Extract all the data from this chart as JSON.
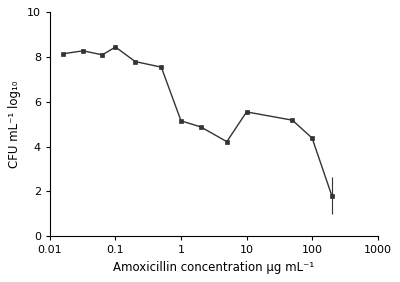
{
  "x": [
    0.016,
    0.032,
    0.063,
    0.1,
    0.2,
    0.5,
    1.0,
    2.0,
    5.0,
    10.0,
    50.0,
    100.0,
    200.0
  ],
  "y": [
    8.15,
    8.28,
    8.1,
    8.45,
    7.8,
    7.55,
    5.15,
    4.88,
    4.22,
    5.55,
    5.18,
    4.38,
    1.8
  ],
  "yerr_low": [
    0.04,
    0.07,
    0.09,
    0.07,
    0.04,
    0.04,
    0.04,
    0.04,
    0.04,
    0.08,
    0.04,
    0.04,
    0.82
  ],
  "yerr_high": [
    0.04,
    0.07,
    0.09,
    0.07,
    0.04,
    0.04,
    0.04,
    0.04,
    0.04,
    0.08,
    0.04,
    0.04,
    0.82
  ],
  "xlabel": "Amoxicillin concentration μg mL⁻¹",
  "ylabel": "CFU mL⁻¹ log₁₀",
  "ylim": [
    0,
    10
  ],
  "yticks": [
    0,
    2,
    4,
    6,
    8,
    10
  ],
  "xlim": [
    0.01,
    1000
  ],
  "line_color": "#333333",
  "marker_color": "#333333",
  "marker": "s",
  "markersize": 3.5,
  "linewidth": 1.0,
  "bg_color": "#ffffff",
  "custom_xticks": [
    0.01,
    0.1,
    1,
    10,
    100,
    1000
  ],
  "custom_xlabels": [
    "0.01",
    "0.1",
    "1",
    "10",
    "100",
    "1000"
  ]
}
